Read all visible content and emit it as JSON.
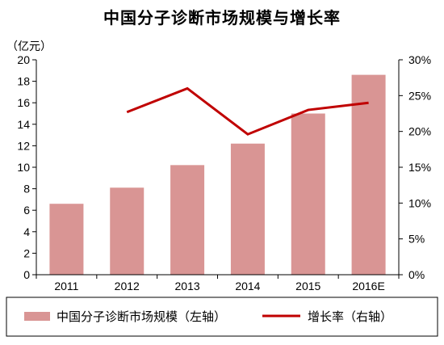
{
  "chart_data": {
    "type": "bar",
    "title": "中国分子诊断市场规模与增长率",
    "y_unit": "（亿元）",
    "categories": [
      "2011",
      "2012",
      "2013",
      "2014",
      "2015",
      "2016E"
    ],
    "series": [
      {
        "name": "中国分子诊断市场规模（左轴）",
        "type": "bar",
        "axis": "left",
        "color": "#d99594",
        "values": [
          6.6,
          8.1,
          10.2,
          12.2,
          15.0,
          18.6
        ]
      },
      {
        "name": "增长率（右轴）",
        "type": "line",
        "axis": "right",
        "color": "#c00000",
        "values": [
          null,
          22.7,
          26.0,
          19.6,
          23.0,
          24.0
        ]
      }
    ],
    "ylim_left": [
      0,
      20
    ],
    "yticks_left": [
      "0",
      "2",
      "4",
      "6",
      "8",
      "10",
      "12",
      "14",
      "16",
      "18",
      "20"
    ],
    "ylim_right": [
      0,
      30
    ],
    "yticks_right": [
      "0%",
      "5%",
      "10%",
      "15%",
      "20%",
      "25%",
      "30%"
    ],
    "grid": false,
    "legend_position": "bottom"
  }
}
